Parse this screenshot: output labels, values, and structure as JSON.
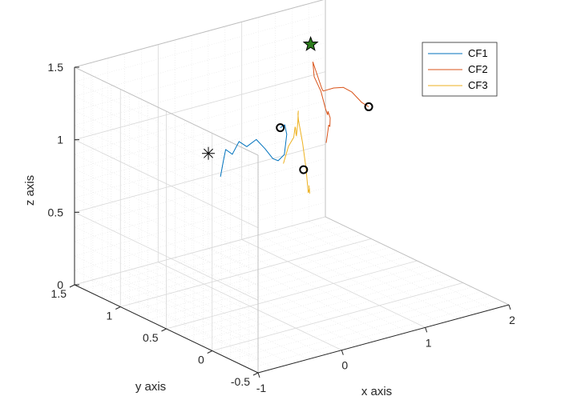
{
  "chart_data": {
    "type": "line",
    "projection": "3d",
    "title": "",
    "xlabel": "x axis",
    "ylabel": "y axis",
    "zlabel": "z axis",
    "xlim": [
      -1,
      2
    ],
    "ylim": [
      -0.5,
      1.5
    ],
    "zlim": [
      0,
      1.5
    ],
    "xticks": [
      "-1",
      "0",
      "1",
      "2"
    ],
    "yticks": [
      "-0.5",
      "0",
      "0.5",
      "1",
      "1.5"
    ],
    "zticks": [
      "0",
      "0.5",
      "1",
      "1.5"
    ],
    "grid": true,
    "minor_grid": true,
    "legend_position": "top-right",
    "series": [
      {
        "name": "CF1",
        "color": "#0072bd",
        "points": [
          [
            -0.22,
            0.62,
            0.89
          ],
          [
            -0.14,
            0.66,
            0.98
          ],
          [
            -0.07,
            0.7,
            1.03
          ],
          [
            0.02,
            0.71,
            0.98
          ],
          [
            0.09,
            0.7,
            1.06
          ],
          [
            0.16,
            0.68,
            1.02
          ],
          [
            0.23,
            0.64,
            1.07
          ],
          [
            0.29,
            0.6,
            1.01
          ],
          [
            0.33,
            0.55,
            0.95
          ],
          [
            0.36,
            0.52,
            0.94
          ],
          [
            0.39,
            0.48,
            0.99
          ],
          [
            0.43,
            0.49,
            1.12
          ],
          [
            0.45,
            0.53,
            1.17
          ],
          [
            0.44,
            0.57,
            1.14
          ]
        ]
      },
      {
        "name": "CF2",
        "color": "#d95319",
        "points": [
          [
            0.78,
            0.38,
            1.04
          ],
          [
            0.85,
            0.43,
            1.07
          ],
          [
            0.92,
            0.48,
            1.11
          ],
          [
            1.0,
            0.54,
            1.07
          ],
          [
            1.07,
            0.6,
            1.1
          ],
          [
            1.11,
            0.66,
            1.12
          ],
          [
            1.17,
            0.72,
            1.07
          ],
          [
            1.21,
            0.78,
            1.09
          ],
          [
            1.26,
            0.85,
            1.12
          ],
          [
            1.31,
            0.92,
            1.15
          ],
          [
            1.29,
            0.97,
            1.23
          ],
          [
            1.35,
            1.03,
            1.21
          ],
          [
            1.39,
            1.08,
            1.29
          ],
          [
            1.43,
            1.02,
            1.12
          ],
          [
            1.49,
            1.06,
            1.08
          ],
          [
            1.55,
            1.0,
            1.11
          ],
          [
            1.61,
            0.95,
            1.12
          ],
          [
            1.67,
            0.91,
            1.09
          ],
          [
            1.72,
            0.85,
            1.03
          ],
          [
            1.75,
            0.8,
            1.01
          ]
        ]
      },
      {
        "name": "CF3",
        "color": "#edb120",
        "points": [
          [
            0.4,
            0.5,
            0.92
          ],
          [
            0.44,
            0.48,
            1.04
          ],
          [
            0.48,
            0.46,
            1.1
          ],
          [
            0.54,
            0.5,
            1.15
          ],
          [
            0.6,
            0.55,
            1.12
          ],
          [
            0.66,
            0.6,
            1.06
          ],
          [
            0.71,
            0.64,
            1.02
          ],
          [
            0.77,
            0.68,
            1.09
          ],
          [
            0.82,
            0.72,
            1.15
          ],
          [
            0.86,
            0.76,
            1.11
          ],
          [
            0.91,
            0.8,
            1.05
          ],
          [
            0.85,
            0.7,
            0.93
          ],
          [
            0.79,
            0.61,
            0.8
          ],
          [
            0.73,
            0.53,
            0.66
          ],
          [
            0.69,
            0.48,
            0.71
          ],
          [
            0.66,
            0.45,
            0.69
          ],
          [
            0.64,
            0.44,
            0.75
          ]
        ]
      }
    ],
    "markers": [
      {
        "type": "circle",
        "x": 0.44,
        "y": 0.57,
        "z": 1.14
      },
      {
        "type": "circle",
        "x": 1.75,
        "y": 0.8,
        "z": 1.01
      },
      {
        "type": "circle",
        "x": 0.62,
        "y": 0.48,
        "z": 0.85
      },
      {
        "type": "asterisk",
        "x": -0.31,
        "y": 0.67,
        "z": 1.05
      },
      {
        "type": "star",
        "x": 1.33,
        "y": 1.05,
        "z": 1.43
      }
    ]
  }
}
